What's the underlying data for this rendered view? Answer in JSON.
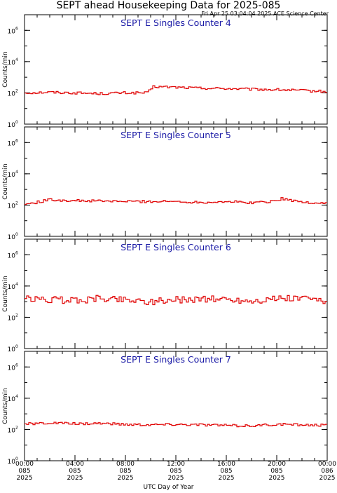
{
  "header": {
    "title": "SEPT ahead Housekeeping Data for 2025-085",
    "subtitle": "Fri Apr 25 03:04:04 2025 ACE Science Center"
  },
  "xaxis": {
    "label": "UTC Day of Year",
    "ticks": [
      {
        "hhmm": "00:00",
        "doy": "085",
        "year": "2025"
      },
      {
        "hhmm": "04:00",
        "doy": "085",
        "year": "2025"
      },
      {
        "hhmm": "08:00",
        "doy": "085",
        "year": "2025"
      },
      {
        "hhmm": "12:00",
        "doy": "085",
        "year": "2025"
      },
      {
        "hhmm": "16:00",
        "doy": "085",
        "year": "2025"
      },
      {
        "hhmm": "20:00",
        "doy": "085",
        "year": "2025"
      },
      {
        "hhmm": "00:00",
        "doy": "086",
        "year": "2025"
      }
    ]
  },
  "colors": {
    "line": "#e00000",
    "title": "#1a1aa6",
    "axis": "#000000"
  },
  "chart_data": [
    {
      "type": "line",
      "title": "SEPT E Singles Counter 4",
      "xlabel": "",
      "ylabel": "Counts/min",
      "yscale": "log",
      "ylim": [
        1,
        10000000
      ],
      "yticks": [
        {
          "base": "10",
          "exp": "0"
        },
        {
          "base": "10",
          "exp": "2"
        },
        {
          "base": "10",
          "exp": "4"
        },
        {
          "base": "10",
          "exp": "6"
        }
      ],
      "x_hours": [
        0,
        2,
        4,
        6,
        8,
        9.8,
        10.2,
        12,
        14,
        16,
        18,
        20,
        22,
        24
      ],
      "y": [
        100,
        110,
        100,
        90,
        100,
        100,
        250,
        230,
        200,
        190,
        170,
        160,
        140,
        120
      ]
    },
    {
      "type": "line",
      "title": "SEPT E Singles Counter 5",
      "xlabel": "",
      "ylabel": "Counts/min",
      "yscale": "log",
      "ylim": [
        1,
        10000000
      ],
      "yticks": [
        {
          "base": "10",
          "exp": "0"
        },
        {
          "base": "10",
          "exp": "2"
        },
        {
          "base": "10",
          "exp": "4"
        },
        {
          "base": "10",
          "exp": "6"
        }
      ],
      "x_hours": [
        0,
        1,
        2,
        4,
        6,
        8,
        10,
        12,
        14,
        16,
        18,
        19.5,
        20.5,
        22,
        24
      ],
      "y": [
        110,
        150,
        220,
        190,
        180,
        170,
        170,
        170,
        150,
        170,
        140,
        170,
        260,
        150,
        130
      ]
    },
    {
      "type": "line",
      "title": "SEPT E Singles Counter 6",
      "xlabel": "",
      "ylabel": "Counts/min",
      "yscale": "log",
      "ylim": [
        1,
        10000000
      ],
      "yticks": [
        {
          "base": "10",
          "exp": "0"
        },
        {
          "base": "10",
          "exp": "2"
        },
        {
          "base": "10",
          "exp": "4"
        },
        {
          "base": "10",
          "exp": "6"
        }
      ],
      "x_hours": [
        0,
        2,
        4,
        6,
        8,
        10,
        12,
        14,
        16,
        18,
        20,
        22,
        24
      ],
      "y": [
        1500,
        1300,
        1200,
        1600,
        1400,
        1000,
        1300,
        1500,
        1400,
        1100,
        1500,
        1600,
        1200
      ]
    },
    {
      "type": "line",
      "title": "SEPT E Singles Counter 7",
      "xlabel": "",
      "ylabel": "Counts/min",
      "yscale": "log",
      "ylim": [
        1,
        10000000
      ],
      "yticks": [
        {
          "base": "10",
          "exp": "0"
        },
        {
          "base": "10",
          "exp": "2"
        },
        {
          "base": "10",
          "exp": "4"
        },
        {
          "base": "10",
          "exp": "6"
        }
      ],
      "x_hours": [
        0,
        2,
        4,
        6,
        8,
        10,
        12,
        14,
        16,
        18,
        20,
        22,
        24
      ],
      "y": [
        220,
        260,
        230,
        250,
        210,
        200,
        210,
        200,
        180,
        170,
        210,
        200,
        180
      ]
    }
  ]
}
